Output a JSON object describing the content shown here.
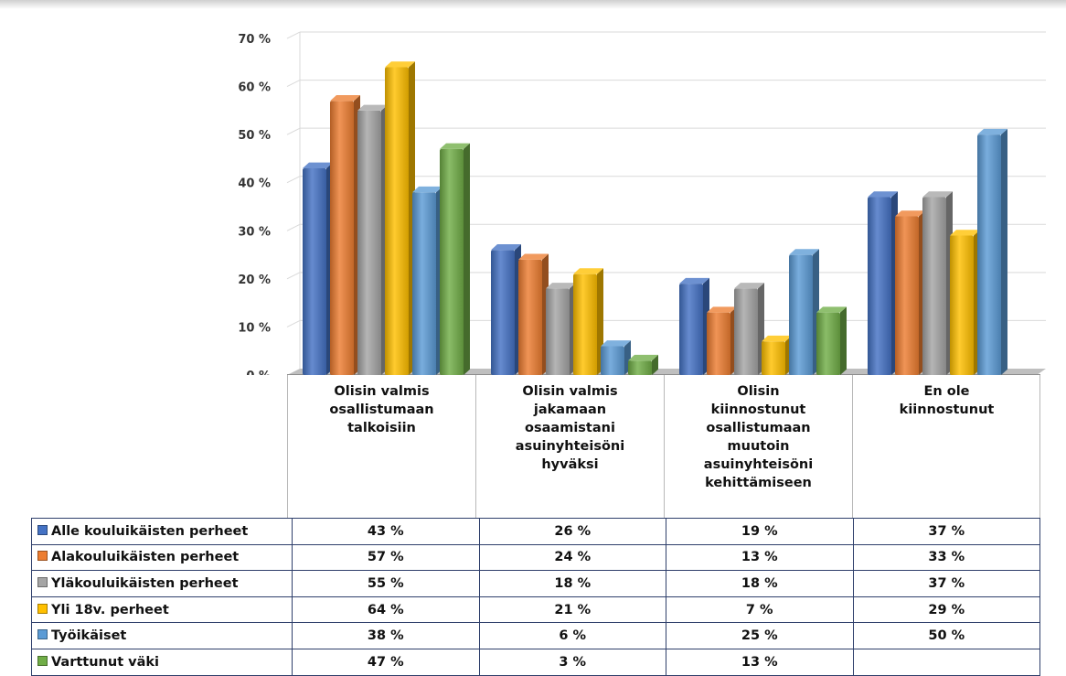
{
  "chart_data": {
    "type": "bar",
    "categories": [
      "Olisin valmis osallistumaan talkoisiin",
      "Olisin valmis jakamaan osaamistani asuinyhteisöni hyväksi",
      "Olisin kiinnostunut osallistumaan muutoin asuinyhteisöni kehittämiseen",
      "En ole kiinnostunut"
    ],
    "category_lines": [
      [
        "Olisin valmis",
        "osallistumaan",
        "talkoisiin"
      ],
      [
        "Olisin valmis",
        "jakamaan",
        "osaamistani",
        "asuinyhteisöni",
        "hyväksi"
      ],
      [
        "Olisin",
        "kiinnostunut",
        "osallistumaan",
        "muutoin",
        "asuinyhteisöni",
        "kehittämiseen"
      ],
      [
        "En ole",
        "kiinnostunut"
      ]
    ],
    "series": [
      {
        "name": "Alle kouluikäisten perheet",
        "color": "#4472c4",
        "values": [
          43,
          26,
          19,
          37
        ]
      },
      {
        "name": "Alakouluikäisten perheet",
        "color": "#ed7d31",
        "values": [
          57,
          24,
          13,
          33
        ]
      },
      {
        "name": "Yläkouluikäisten perheet",
        "color": "#a5a5a5",
        "values": [
          55,
          18,
          18,
          37
        ]
      },
      {
        "name": "Yli 18v. perheet",
        "color": "#ffc000",
        "values": [
          64,
          21,
          7,
          29
        ]
      },
      {
        "name": "Työikäiset",
        "color": "#5b9bd5",
        "values": [
          38,
          6,
          25,
          50
        ]
      },
      {
        "name": "Varttunut väki",
        "color": "#70ad47",
        "values": [
          47,
          3,
          13,
          null
        ]
      }
    ],
    "ylim": [
      0,
      70
    ],
    "yticks": [
      0,
      10,
      20,
      30,
      40,
      50,
      60,
      70
    ],
    "unit": "%",
    "grid": true,
    "legend": "data-table-below",
    "title": "",
    "xlabel": "",
    "ylabel": ""
  }
}
